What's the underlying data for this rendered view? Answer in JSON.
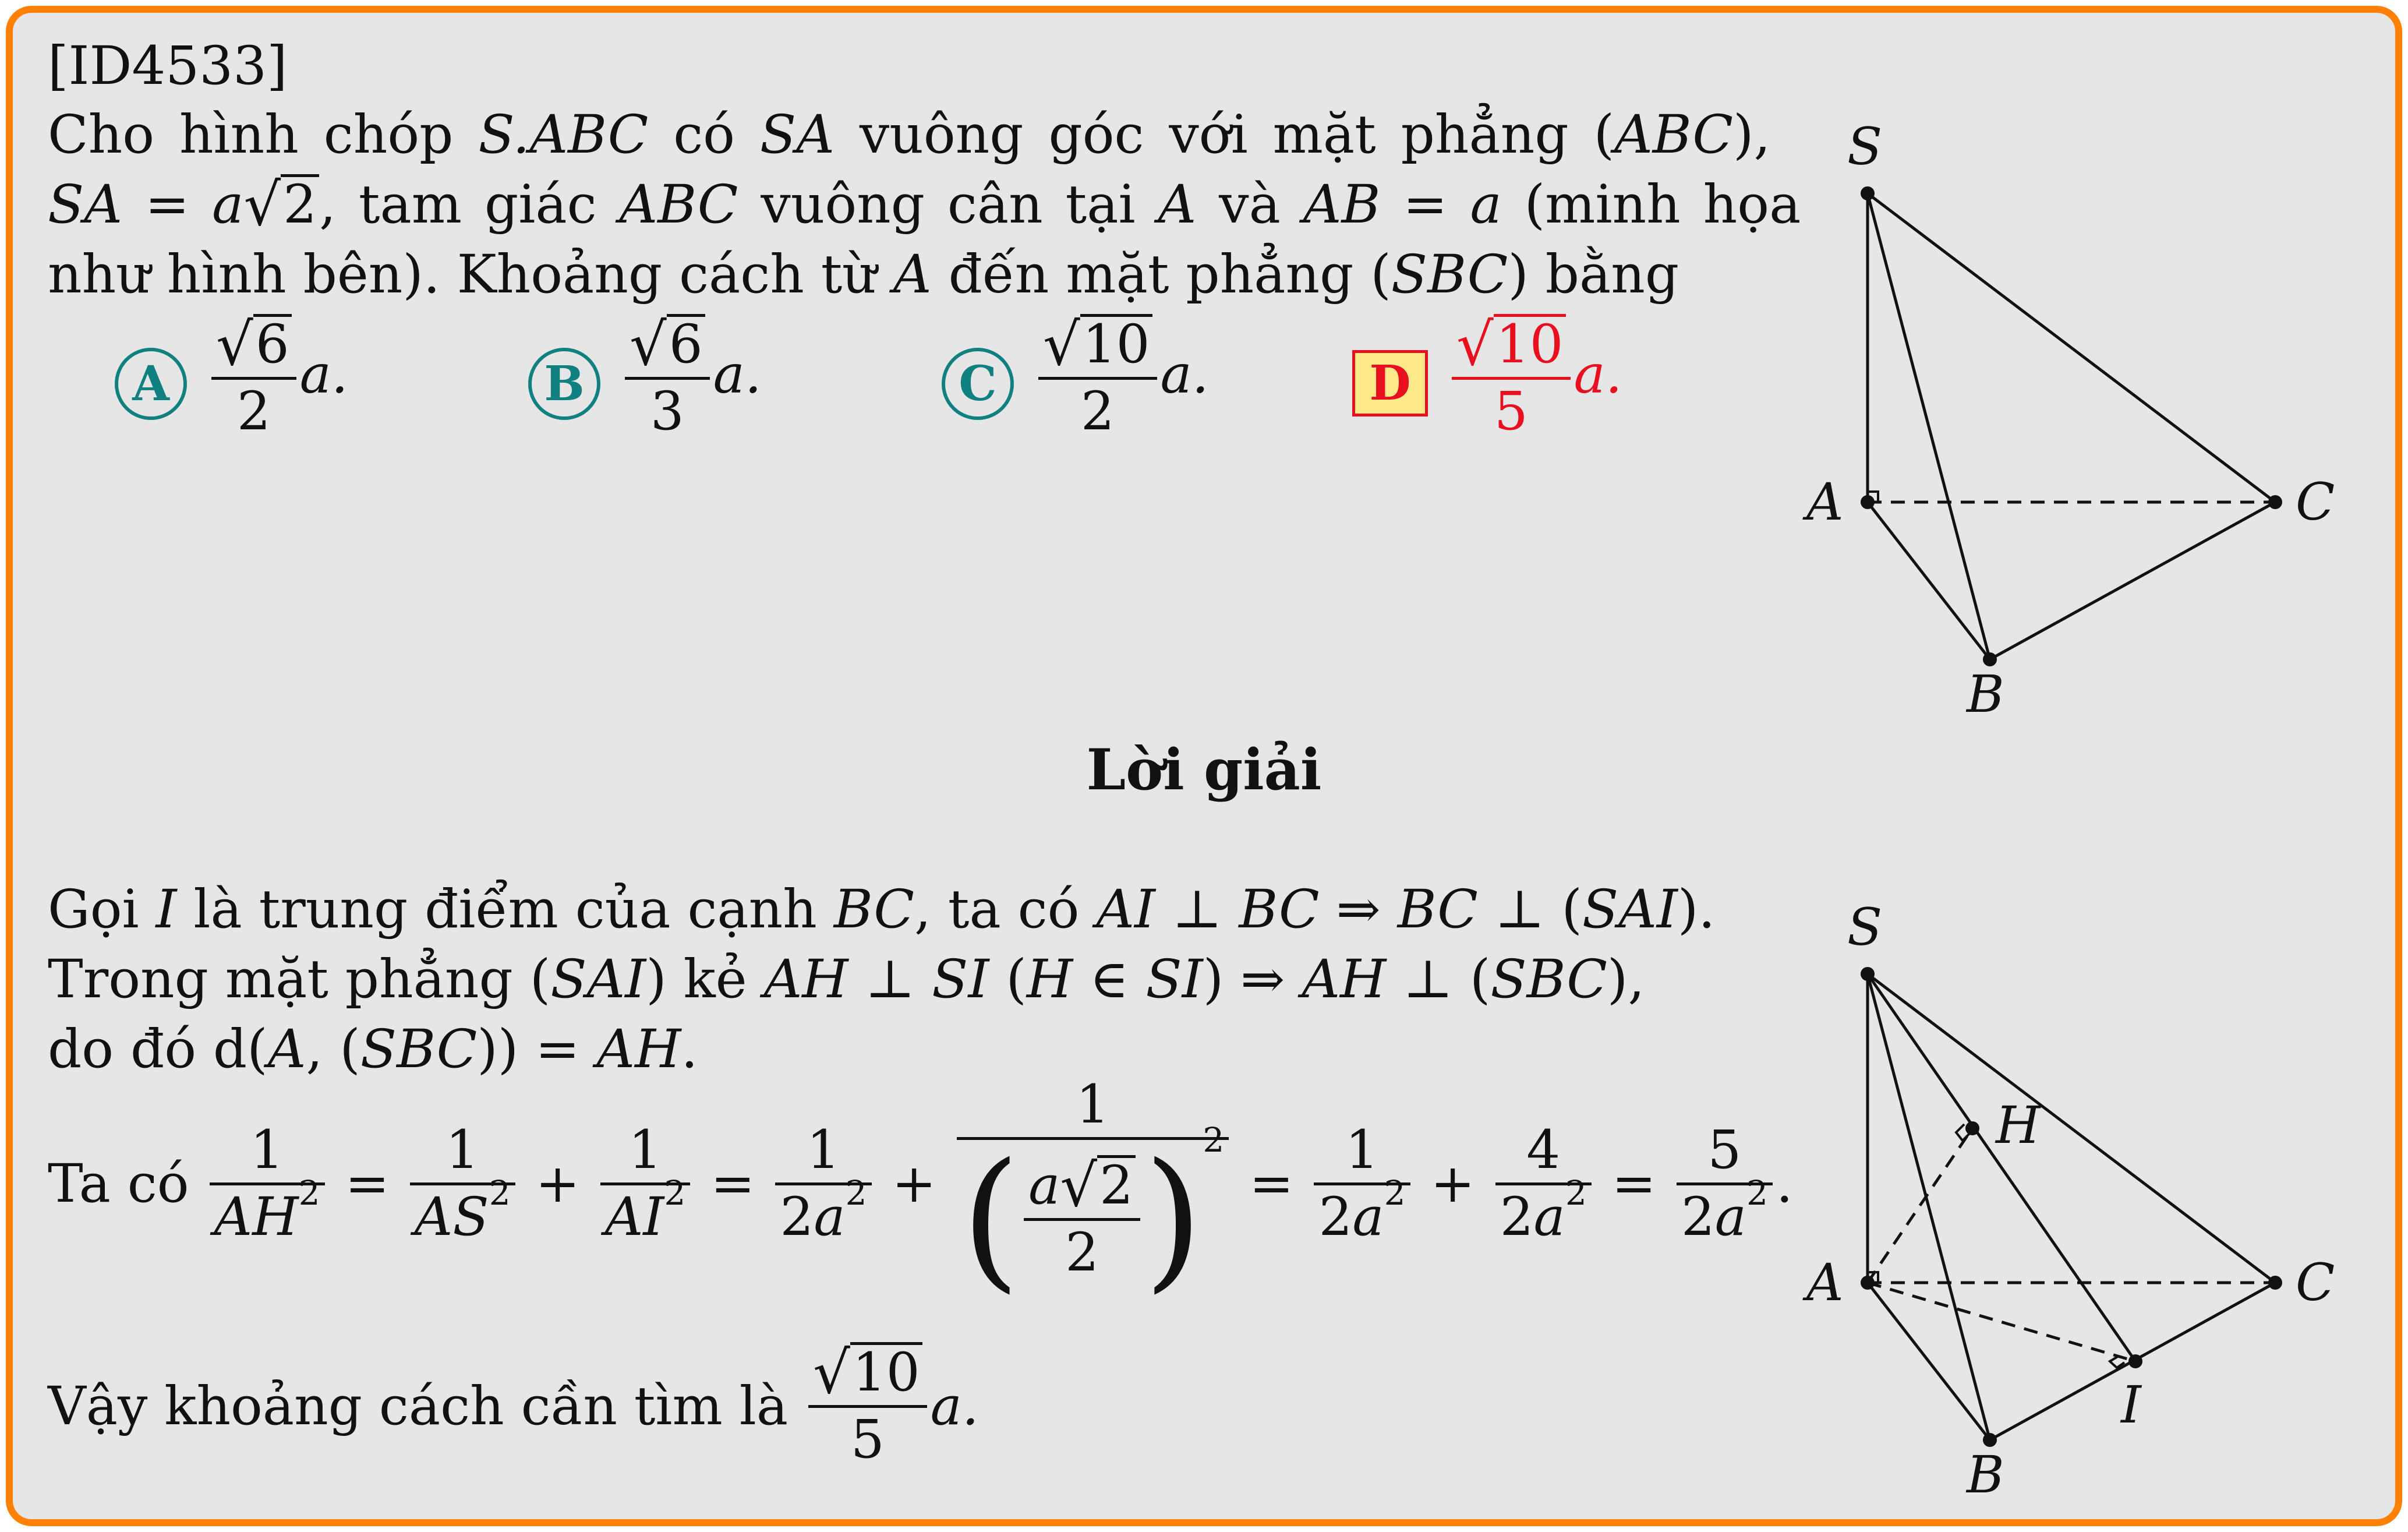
{
  "problem": {
    "id": "[ID4533]",
    "line1": [
      "Cho hình chóp ",
      "S.ABC",
      " có ",
      "SA",
      " vuông góc với mặt phẳng (",
      "ABC",
      "),"
    ],
    "line2": [
      "SA",
      " = ",
      "a",
      "2",
      ", tam giác ",
      "ABC",
      " vuông cân tại ",
      "A",
      " và ",
      "AB",
      " = ",
      "a",
      " (minh họa"
    ],
    "line3": [
      "như hình bên). Khoảng cách từ ",
      "A",
      " đến mặt phẳng (",
      "SBC",
      ") bằng"
    ]
  },
  "options": [
    {
      "label": "A",
      "num": "6",
      "den": "2",
      "suffix": "a."
    },
    {
      "label": "B",
      "num": "6",
      "den": "3",
      "suffix": "a."
    },
    {
      "label": "C",
      "num": "10",
      "den": "2",
      "suffix": "a."
    },
    {
      "label": "D",
      "num": "10",
      "den": "5",
      "suffix": "a.",
      "correct": true
    }
  ],
  "colors": {
    "border": "#ff8005",
    "background": "#e6e6e6",
    "option_circle": "#118080",
    "correct": "#e8101f",
    "correct_box": "#fde98a"
  },
  "solution": {
    "heading": "Lời giải",
    "s1": [
      "Gọi ",
      "I",
      " là trung điểm của cạnh ",
      "BC",
      ", ta có ",
      "AI",
      " ⊥ ",
      "BC",
      " ⇒ ",
      "BC",
      " ⊥ (",
      "SAI",
      ")."
    ],
    "s2": [
      "Trong mặt phẳng (",
      "SAI",
      ") kẻ ",
      "AH",
      " ⊥ ",
      "SI",
      " (",
      "H",
      " ∈ ",
      "SI",
      ") ⇒ ",
      "AH",
      " ⊥ (",
      "SBC",
      "),"
    ],
    "s3": [
      "do đó d(",
      "A",
      ", (",
      "SBC",
      ")) = ",
      "AH",
      "."
    ],
    "eq_prefix": "Ta có",
    "eq": {
      "one": "1",
      "AH": "AH",
      "AS": "AS",
      "AI": "AI",
      "two_a": "2a",
      "a": "a",
      "r2": "2",
      "two": "2",
      "four": "4",
      "five": "5",
      "plus": "+",
      "equals": "=",
      "sq": "2"
    },
    "conclusion_prefix": "Vậy khoảng cách cần tìm là",
    "conclusion_num": "10",
    "conclusion_den": "5",
    "conclusion_suffix": "a."
  },
  "figure1": {
    "labels": {
      "S": "S",
      "A": "A",
      "B": "B",
      "C": "C"
    }
  },
  "figure2": {
    "labels": {
      "S": "S",
      "A": "A",
      "B": "B",
      "C": "C",
      "H": "H",
      "I": "I"
    }
  }
}
